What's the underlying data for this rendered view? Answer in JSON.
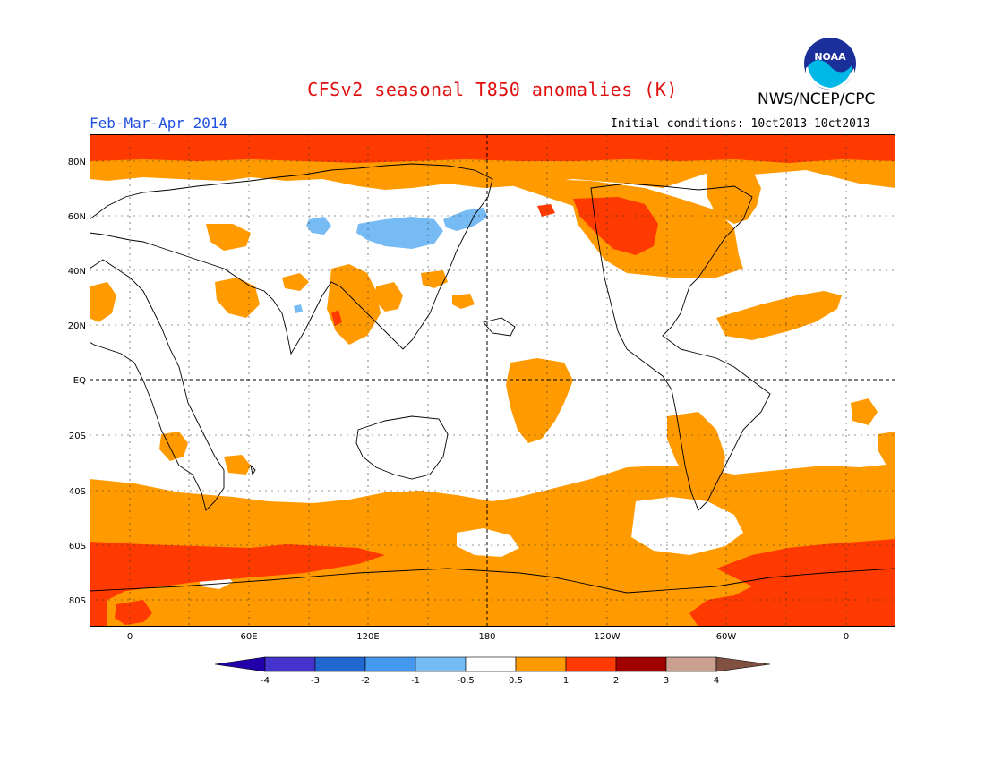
{
  "title": "CFSv2 seasonal T850 anomalies (K)",
  "organization": "NWS/NCEP/CPC",
  "logo_text": "NOAA",
  "season": "Feb-Mar-Apr 2014",
  "initial_conditions": "Initial conditions: 10ct2013-10ct2013",
  "lat_labels": [
    "80N",
    "60N",
    "40N",
    "20N",
    "EQ",
    "20S",
    "40S",
    "60S",
    "80S"
  ],
  "lon_labels": [
    "0",
    "60E",
    "120E",
    "180",
    "120W",
    "60W",
    "0"
  ],
  "colorbar": {
    "labels": [
      "-4",
      "-3",
      "-2",
      "-1",
      "-0.5",
      "0.5",
      "1",
      "2",
      "3",
      "4"
    ],
    "colors": [
      "#2200aa",
      "#4433cc",
      "#2266d0",
      "#4499ee",
      "#77bbf5",
      "#ffffff",
      "#ff9a00",
      "#ff3a00",
      "#a00000",
      "#caa090",
      "#805040"
    ]
  },
  "colors": {
    "anomaly_0_5_1": "#ff9a00",
    "anomaly_1_2": "#ff3a00",
    "anomaly_neg_0_5_neg_1": "#77bbf5",
    "title": "#e01010",
    "season": "#2050e0"
  }
}
